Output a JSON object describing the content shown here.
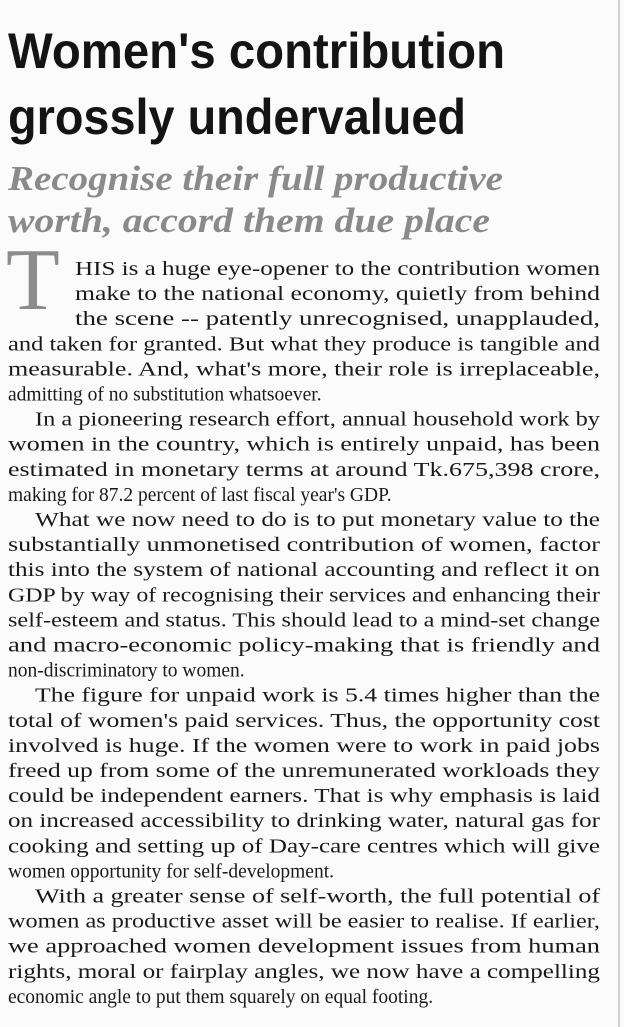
{
  "headline": {
    "lines": [
      "Women's contribution",
      "grossly undervalued"
    ]
  },
  "subheadline": {
    "lines": [
      "Recognise their full productive",
      "worth, accord them due place"
    ]
  },
  "drop_cap": "T",
  "paragraphs": [
    {
      "lines": [
        "HIS is a huge eye-opener to the contribution women",
        "make to the national economy, quietly from behind",
        "the scene -- patently unrecognised, unapplauded,",
        "and taken for granted. But what they produce is tangible and",
        "measurable. And, what's more, their role is irreplaceable,",
        "admitting of no substitution whatsoever."
      ]
    },
    {
      "lines": [
        "In a pioneering research effort, annual household work by",
        "women in the country, which is entirely unpaid, has been",
        "estimated in monetary terms at around Tk.675,398 crore,",
        "making for 87.2 percent of last fiscal year's GDP."
      ]
    },
    {
      "lines": [
        "What we now need to do is to put monetary value to the",
        "substantially unmonetised contribution of women, factor",
        "this into the system of national accounting and reflect it on",
        "GDP by way of recognising their services and enhancing their",
        "self-esteem and status. This should lead to a mind-set change",
        "and macro-economic policy-making that is friendly and",
        "non-discriminatory to women."
      ]
    },
    {
      "lines": [
        "The figure for unpaid work is 5.4 times higher than the",
        "total of women's paid services. Thus, the opportunity cost",
        "involved is huge. If the women were to work in paid jobs",
        "freed up from some of the unremunerated workloads they",
        "could be independent earners. That is why emphasis is laid",
        "on increased accessibility to drinking water, natural gas for",
        "cooking and setting up of Day-care centres which will give",
        "women opportunity for self-development."
      ]
    },
    {
      "lines": [
        "With a greater sense of self-worth, the full potential of",
        "women as productive asset will be easier to realise. If earlier,",
        "we approached women development issues from human",
        "rights, moral or fairplay angles, we now have a compelling",
        "economic angle to put them squarely on equal footing."
      ]
    }
  ]
}
